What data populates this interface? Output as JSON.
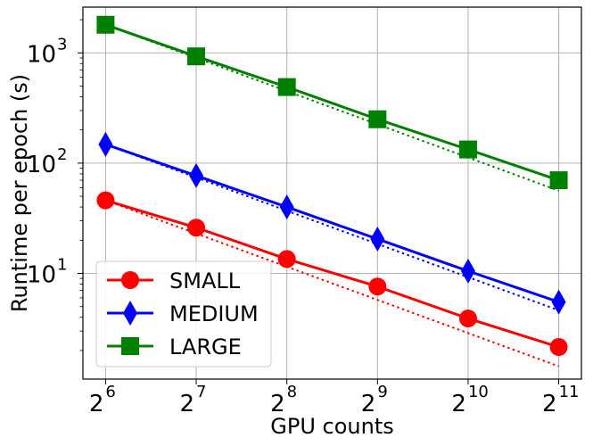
{
  "chart_data": {
    "type": "line",
    "title": "",
    "xlabel": "GPU counts",
    "ylabel": "Runtime per epoch (s)",
    "xscale": "log2",
    "yscale": "log10",
    "x_exponents": [
      6,
      7,
      8,
      9,
      10,
      11
    ],
    "x_tick_labels": [
      {
        "base": "2",
        "exp": "6"
      },
      {
        "base": "2",
        "exp": "7"
      },
      {
        "base": "2",
        "exp": "8"
      },
      {
        "base": "2",
        "exp": "9"
      },
      {
        "base": "2",
        "exp": "10"
      },
      {
        "base": "2",
        "exp": "11"
      }
    ],
    "x": [
      64,
      128,
      256,
      512,
      1024,
      2048
    ],
    "y_tick_labels": [
      {
        "base": "10",
        "exp": "1",
        "value": 10
      },
      {
        "base": "10",
        "exp": "2",
        "value": 100
      },
      {
        "base": "10",
        "exp": "3",
        "value": 1000
      }
    ],
    "ylim": [
      1.1,
      2600
    ],
    "grid": true,
    "legend_position": "lower-left",
    "series": [
      {
        "name": "SMALL",
        "color": "#ff0000",
        "marker": "circle",
        "values": [
          46,
          26,
          13.5,
          7.6,
          3.9,
          2.15
        ],
        "ideal": [
          46,
          23,
          11.5,
          5.75,
          2.875,
          1.4375
        ]
      },
      {
        "name": "MEDIUM",
        "color": "#0000ff",
        "marker": "diamond",
        "values": [
          148,
          77,
          40,
          20.5,
          10.5,
          5.5
        ],
        "ideal": [
          148,
          74,
          37,
          18.5,
          9.25,
          4.625
        ]
      },
      {
        "name": "LARGE",
        "color": "#008000",
        "marker": "square",
        "values": [
          1800,
          930,
          490,
          250,
          133,
          70
        ],
        "ideal": [
          1800,
          900,
          450,
          225,
          112.5,
          56.25
        ]
      }
    ]
  }
}
